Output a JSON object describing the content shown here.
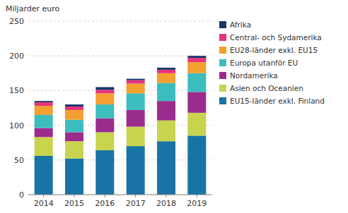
{
  "chart_data": {
    "type": "bar",
    "stacked": true,
    "ylabel": "Miljarder euro",
    "categories": [
      "2014",
      "2015",
      "2016",
      "2017",
      "2018",
      "2019"
    ],
    "series": [
      {
        "name": "EU15-länder exkl. Finland",
        "color": "#1874a4",
        "values": [
          56,
          52,
          64,
          70,
          77,
          85
        ]
      },
      {
        "name": "Asien och Oceanien",
        "color": "#c8d44e",
        "values": [
          27,
          25,
          26,
          28,
          30,
          33
        ]
      },
      {
        "name": "Nordamerika",
        "color": "#9b2c8e",
        "values": [
          13,
          13,
          20,
          24,
          28,
          30
        ]
      },
      {
        "name": "Europa utanför EU",
        "color": "#3dbdbd",
        "values": [
          19,
          18,
          20,
          24,
          26,
          27
        ]
      },
      {
        "name": "EU28-länder exkl. EU15",
        "color": "#f4a030",
        "values": [
          13,
          14,
          16,
          14,
          14,
          16
        ]
      },
      {
        "name": "Central- och Sydamerika",
        "color": "#e8327c",
        "values": [
          5,
          5,
          5,
          5,
          5,
          6
        ]
      },
      {
        "name": "Afrika",
        "color": "#1a3668",
        "values": [
          2,
          3,
          4,
          2,
          3,
          3
        ]
      }
    ],
    "ylim": [
      0,
      250
    ],
    "yticks": [
      0,
      50,
      100,
      150,
      200,
      250
    ],
    "grid": true,
    "legend": "right"
  }
}
